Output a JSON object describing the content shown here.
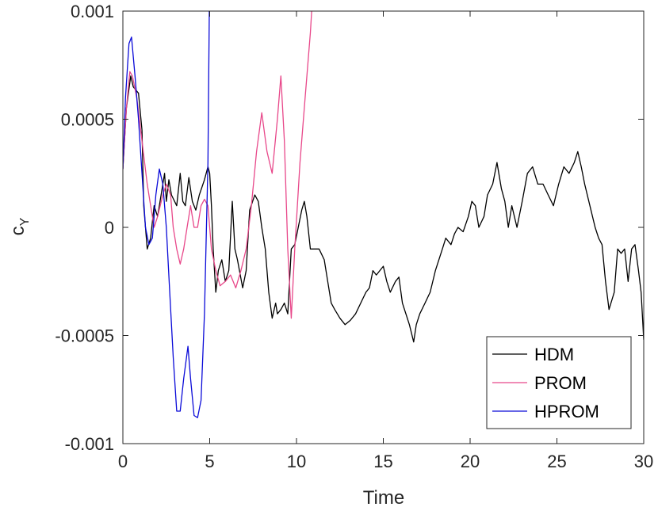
{
  "chart_data": {
    "type": "line",
    "xlabel": "Time",
    "ylabel_main": "c",
    "ylabel_sub": "Y",
    "xlim": [
      0,
      30
    ],
    "ylim": [
      -0.001,
      0.001
    ],
    "x_ticks": [
      0,
      5,
      10,
      15,
      20,
      25,
      30
    ],
    "x_tick_labels": [
      "0",
      "5",
      "10",
      "15",
      "20",
      "25",
      "30"
    ],
    "y_ticks": [
      -0.001,
      -0.0005,
      0,
      0.0005,
      0.001
    ],
    "y_tick_labels": [
      "-0.001",
      "-0.0005",
      "0",
      "0.0005",
      "0.001"
    ],
    "grid": false,
    "legend_position": "bottom-right",
    "series": [
      {
        "name": "HDM",
        "color": "#000000",
        "points": [
          [
            0,
            0.00027
          ],
          [
            0.2,
            0.00055
          ],
          [
            0.45,
            0.0007
          ],
          [
            0.6,
            0.00065
          ],
          [
            0.9,
            0.00062
          ],
          [
            1.1,
            0.00045
          ],
          [
            1.2,
            0.0001
          ],
          [
            1.4,
            -0.0001
          ],
          [
            1.6,
            -5e-05
          ],
          [
            1.8,
            0.0001
          ],
          [
            2.0,
            5e-05
          ],
          [
            2.2,
            0.00015
          ],
          [
            2.4,
            0.00025
          ],
          [
            2.5,
            0.00012
          ],
          [
            2.65,
            0.00022
          ],
          [
            2.8,
            0.00015
          ],
          [
            3.1,
            0.0001
          ],
          [
            3.3,
            0.00025
          ],
          [
            3.45,
            0.00012
          ],
          [
            3.6,
            0.0001
          ],
          [
            3.8,
            0.00023
          ],
          [
            4.0,
            0.00012
          ],
          [
            4.2,
            8e-05
          ],
          [
            4.4,
            0.00015
          ],
          [
            4.7,
            0.00022
          ],
          [
            4.9,
            0.00028
          ],
          [
            5.0,
            0.00025
          ],
          [
            5.1,
            0.0001
          ],
          [
            5.2,
            -0.0001
          ],
          [
            5.35,
            -0.0003
          ],
          [
            5.5,
            -0.0002
          ],
          [
            5.7,
            -0.00015
          ],
          [
            5.9,
            -0.00025
          ],
          [
            6.1,
            -0.0002
          ],
          [
            6.3,
            0.00012
          ],
          [
            6.45,
            -0.0001
          ],
          [
            6.6,
            -0.00015
          ],
          [
            6.9,
            -0.00028
          ],
          [
            7.1,
            -0.0002
          ],
          [
            7.3,
            8e-05
          ],
          [
            7.6,
            0.00015
          ],
          [
            7.8,
            0.00012
          ],
          [
            8.0,
            0.0
          ],
          [
            8.2,
            -0.0001
          ],
          [
            8.4,
            -0.0003
          ],
          [
            8.6,
            -0.00042
          ],
          [
            8.8,
            -0.00035
          ],
          [
            8.9,
            -0.0004
          ],
          [
            9.1,
            -0.00038
          ],
          [
            9.3,
            -0.00035
          ],
          [
            9.5,
            -0.0004
          ],
          [
            9.7,
            -0.0001
          ],
          [
            9.9,
            -8e-05
          ],
          [
            10.1,
            0.0
          ],
          [
            10.3,
            8e-05
          ],
          [
            10.45,
            0.00012
          ],
          [
            10.6,
            5e-05
          ],
          [
            10.8,
            -0.0001
          ],
          [
            11.0,
            -0.0001
          ],
          [
            11.3,
            -0.0001
          ],
          [
            11.6,
            -0.00015
          ],
          [
            11.8,
            -0.00025
          ],
          [
            12.0,
            -0.00035
          ],
          [
            12.2,
            -0.00038
          ],
          [
            12.5,
            -0.00042
          ],
          [
            12.8,
            -0.00045
          ],
          [
            13.1,
            -0.00043
          ],
          [
            13.4,
            -0.0004
          ],
          [
            13.7,
            -0.00035
          ],
          [
            14.0,
            -0.0003
          ],
          [
            14.2,
            -0.00028
          ],
          [
            14.4,
            -0.0002
          ],
          [
            14.6,
            -0.00022
          ],
          [
            14.8,
            -0.0002
          ],
          [
            15.0,
            -0.00018
          ],
          [
            15.2,
            -0.00025
          ],
          [
            15.4,
            -0.0003
          ],
          [
            15.7,
            -0.00025
          ],
          [
            15.9,
            -0.00023
          ],
          [
            16.1,
            -0.00035
          ],
          [
            16.3,
            -0.0004
          ],
          [
            16.5,
            -0.00045
          ],
          [
            16.75,
            -0.00053
          ],
          [
            16.9,
            -0.00045
          ],
          [
            17.1,
            -0.0004
          ],
          [
            17.4,
            -0.00035
          ],
          [
            17.7,
            -0.0003
          ],
          [
            18.0,
            -0.0002
          ],
          [
            18.2,
            -0.00015
          ],
          [
            18.4,
            -0.0001
          ],
          [
            18.6,
            -5e-05
          ],
          [
            18.9,
            -8e-05
          ],
          [
            19.1,
            -3e-05
          ],
          [
            19.3,
            0.0
          ],
          [
            19.6,
            -2e-05
          ],
          [
            19.9,
            5e-05
          ],
          [
            20.1,
            0.00012
          ],
          [
            20.3,
            0.0001
          ],
          [
            20.5,
            0.0
          ],
          [
            20.8,
            5e-05
          ],
          [
            21.0,
            0.00015
          ],
          [
            21.3,
            0.0002
          ],
          [
            21.55,
            0.0003
          ],
          [
            21.8,
            0.00018
          ],
          [
            22.0,
            0.00012
          ],
          [
            22.2,
            0.0
          ],
          [
            22.4,
            0.0001
          ],
          [
            22.7,
            0.0
          ],
          [
            23.0,
            0.00012
          ],
          [
            23.3,
            0.00025
          ],
          [
            23.6,
            0.00028
          ],
          [
            23.9,
            0.0002
          ],
          [
            24.2,
            0.0002
          ],
          [
            24.5,
            0.00015
          ],
          [
            24.8,
            0.0001
          ],
          [
            25.1,
            0.0002
          ],
          [
            25.4,
            0.00028
          ],
          [
            25.7,
            0.00025
          ],
          [
            26.0,
            0.0003
          ],
          [
            26.2,
            0.00035
          ],
          [
            26.4,
            0.00028
          ],
          [
            26.6,
            0.0002
          ],
          [
            26.9,
            0.0001
          ],
          [
            27.2,
            0.0
          ],
          [
            27.4,
            -5e-05
          ],
          [
            27.6,
            -8e-05
          ],
          [
            27.8,
            -0.00025
          ],
          [
            28.0,
            -0.00038
          ],
          [
            28.3,
            -0.0003
          ],
          [
            28.5,
            -0.0001
          ],
          [
            28.7,
            -0.00012
          ],
          [
            28.9,
            -0.0001
          ],
          [
            29.1,
            -0.00025
          ],
          [
            29.3,
            -0.0001
          ],
          [
            29.5,
            -8e-05
          ],
          [
            29.7,
            -0.0002
          ],
          [
            29.85,
            -0.0003
          ],
          [
            30.0,
            -0.00052
          ]
        ]
      },
      {
        "name": "PROM",
        "color": "#e8488a",
        "points": [
          [
            0,
            0.00027
          ],
          [
            0.2,
            0.00055
          ],
          [
            0.4,
            0.00072
          ],
          [
            0.55,
            0.0007
          ],
          [
            0.8,
            0.0006
          ],
          [
            1.1,
            0.0004
          ],
          [
            1.4,
            0.0002
          ],
          [
            1.6,
            0.0001
          ],
          [
            1.8,
            0.0
          ],
          [
            2.0,
            5e-05
          ],
          [
            2.3,
            0.00015
          ],
          [
            2.5,
            0.0002
          ],
          [
            2.75,
            0.00015
          ],
          [
            2.9,
            0.0
          ],
          [
            3.1,
            -0.0001
          ],
          [
            3.3,
            -0.00017
          ],
          [
            3.5,
            -0.0001
          ],
          [
            3.7,
            0.0
          ],
          [
            3.9,
            0.0001
          ],
          [
            4.1,
            0.0
          ],
          [
            4.3,
            0.0
          ],
          [
            4.5,
            0.0001
          ],
          [
            4.7,
            0.00013
          ],
          [
            4.9,
            0.0001
          ],
          [
            5.1,
            -0.0001
          ],
          [
            5.35,
            -0.0002
          ],
          [
            5.6,
            -0.00027
          ],
          [
            5.9,
            -0.00025
          ],
          [
            6.2,
            -0.00022
          ],
          [
            6.5,
            -0.00028
          ],
          [
            6.8,
            -0.0002
          ],
          [
            7.1,
            -0.0001
          ],
          [
            7.4,
            0.0001
          ],
          [
            7.7,
            0.00035
          ],
          [
            8.0,
            0.00053
          ],
          [
            8.3,
            0.00035
          ],
          [
            8.6,
            0.00025
          ],
          [
            8.9,
            0.0005
          ],
          [
            9.1,
            0.0007
          ],
          [
            9.3,
            0.0004
          ],
          [
            9.5,
            -0.0001
          ],
          [
            9.7,
            -0.00042
          ],
          [
            9.9,
            -0.0001
          ],
          [
            10.2,
            0.0003
          ],
          [
            10.5,
            0.0006
          ],
          [
            10.8,
            0.0009
          ],
          [
            11.1,
            0.0013
          ]
        ]
      },
      {
        "name": "HPROM",
        "color": "#0a0ad8",
        "points": [
          [
            0,
            0.00027
          ],
          [
            0.15,
            0.0006
          ],
          [
            0.35,
            0.00085
          ],
          [
            0.5,
            0.00088
          ],
          [
            0.7,
            0.0007
          ],
          [
            0.9,
            0.0005
          ],
          [
            1.1,
            0.00025
          ],
          [
            1.3,
            0.0
          ],
          [
            1.5,
            -8e-05
          ],
          [
            1.7,
            -5e-05
          ],
          [
            1.9,
            0.00015
          ],
          [
            2.1,
            0.00027
          ],
          [
            2.3,
            0.0002
          ],
          [
            2.5,
            0.0
          ],
          [
            2.7,
            -0.0003
          ],
          [
            2.9,
            -0.0006
          ],
          [
            3.1,
            -0.00085
          ],
          [
            3.3,
            -0.00085
          ],
          [
            3.5,
            -0.0007
          ],
          [
            3.75,
            -0.00055
          ],
          [
            3.9,
            -0.0007
          ],
          [
            4.1,
            -0.00087
          ],
          [
            4.3,
            -0.00088
          ],
          [
            4.5,
            -0.0008
          ],
          [
            4.7,
            -0.0004
          ],
          [
            4.9,
            0.0003
          ],
          [
            5.0,
            0.0012
          ]
        ]
      }
    ]
  }
}
